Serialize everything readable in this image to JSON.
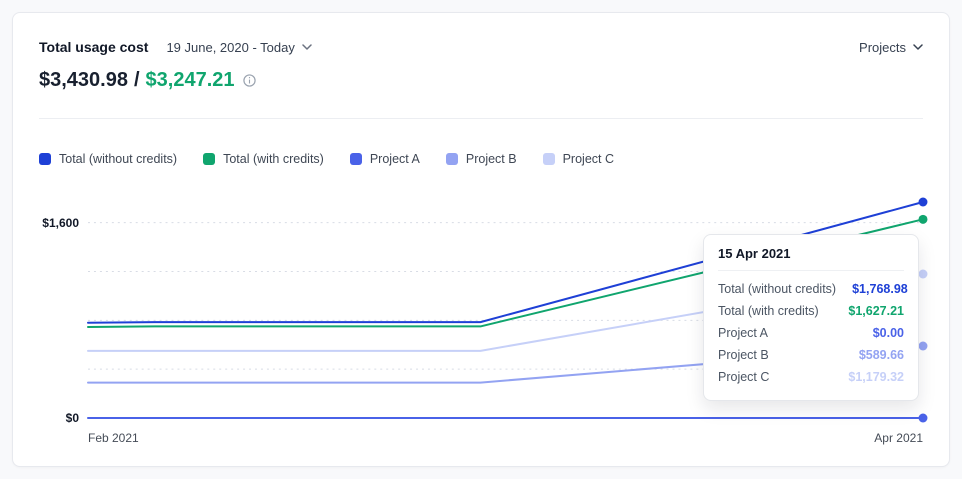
{
  "header": {
    "title": "Total usage cost",
    "date_range": "19 June, 2020 - Today",
    "projects_selector": "Projects"
  },
  "summary": {
    "total_without_credits": "$3,430.98",
    "separator": "/",
    "total_with_credits": "$3,247.21"
  },
  "colors": {
    "total_without_credits": "#1e40d6",
    "total_with_credits": "#10a56e",
    "project_a": "#4a62e8",
    "project_b": "#93a3f2",
    "project_c": "#c6d0f8",
    "gridline": "#d8dce5"
  },
  "chart_data": {
    "type": "line",
    "title": "Total usage cost",
    "x_tick_labels": [
      "Feb 2021",
      "Apr 2021"
    ],
    "y_tick_labels": [
      "$1,600",
      "$0"
    ],
    "y_tick_values": [
      1600,
      0
    ],
    "ylim": [
      0,
      1769
    ],
    "gridline_values": [
      1600,
      1200,
      800,
      400,
      0
    ],
    "grid_style": "dotted",
    "legend_position": "top",
    "series": [
      {
        "name": "Total (without credits)",
        "color": "#1e40d6",
        "x": [
          0,
          0.08,
          0.47,
          1
        ],
        "values": [
          780,
          785,
          785,
          1768.98
        ]
      },
      {
        "name": "Total (with credits)",
        "color": "#10a56e",
        "x": [
          0,
          0.08,
          0.47,
          1
        ],
        "values": [
          745,
          750,
          750,
          1627.21
        ]
      },
      {
        "name": "Project A",
        "color": "#4a62e8",
        "x": [
          0,
          0.47,
          1
        ],
        "values": [
          0,
          0,
          0
        ]
      },
      {
        "name": "Project B",
        "color": "#93a3f2",
        "x": [
          0,
          0.47,
          1
        ],
        "values": [
          290,
          290,
          589.66
        ]
      },
      {
        "name": "Project C",
        "color": "#c6d0f8",
        "x": [
          0,
          0.47,
          1
        ],
        "values": [
          550,
          550,
          1179.32
        ]
      }
    ]
  },
  "tooltip": {
    "date": "15 Apr 2021",
    "rows": [
      {
        "label": "Total (without credits)",
        "value": "$1,768.98",
        "color": "#1e40d6"
      },
      {
        "label": "Total (with credits)",
        "value": "$1,627.21",
        "color": "#10a56e"
      },
      {
        "label": "Project A",
        "value": "$0.00",
        "color": "#4a62e8"
      },
      {
        "label": "Project B",
        "value": "$589.66",
        "color": "#93a3f2"
      },
      {
        "label": "Project C",
        "value": "$1,179.32",
        "color": "#c6d0f8"
      }
    ]
  }
}
